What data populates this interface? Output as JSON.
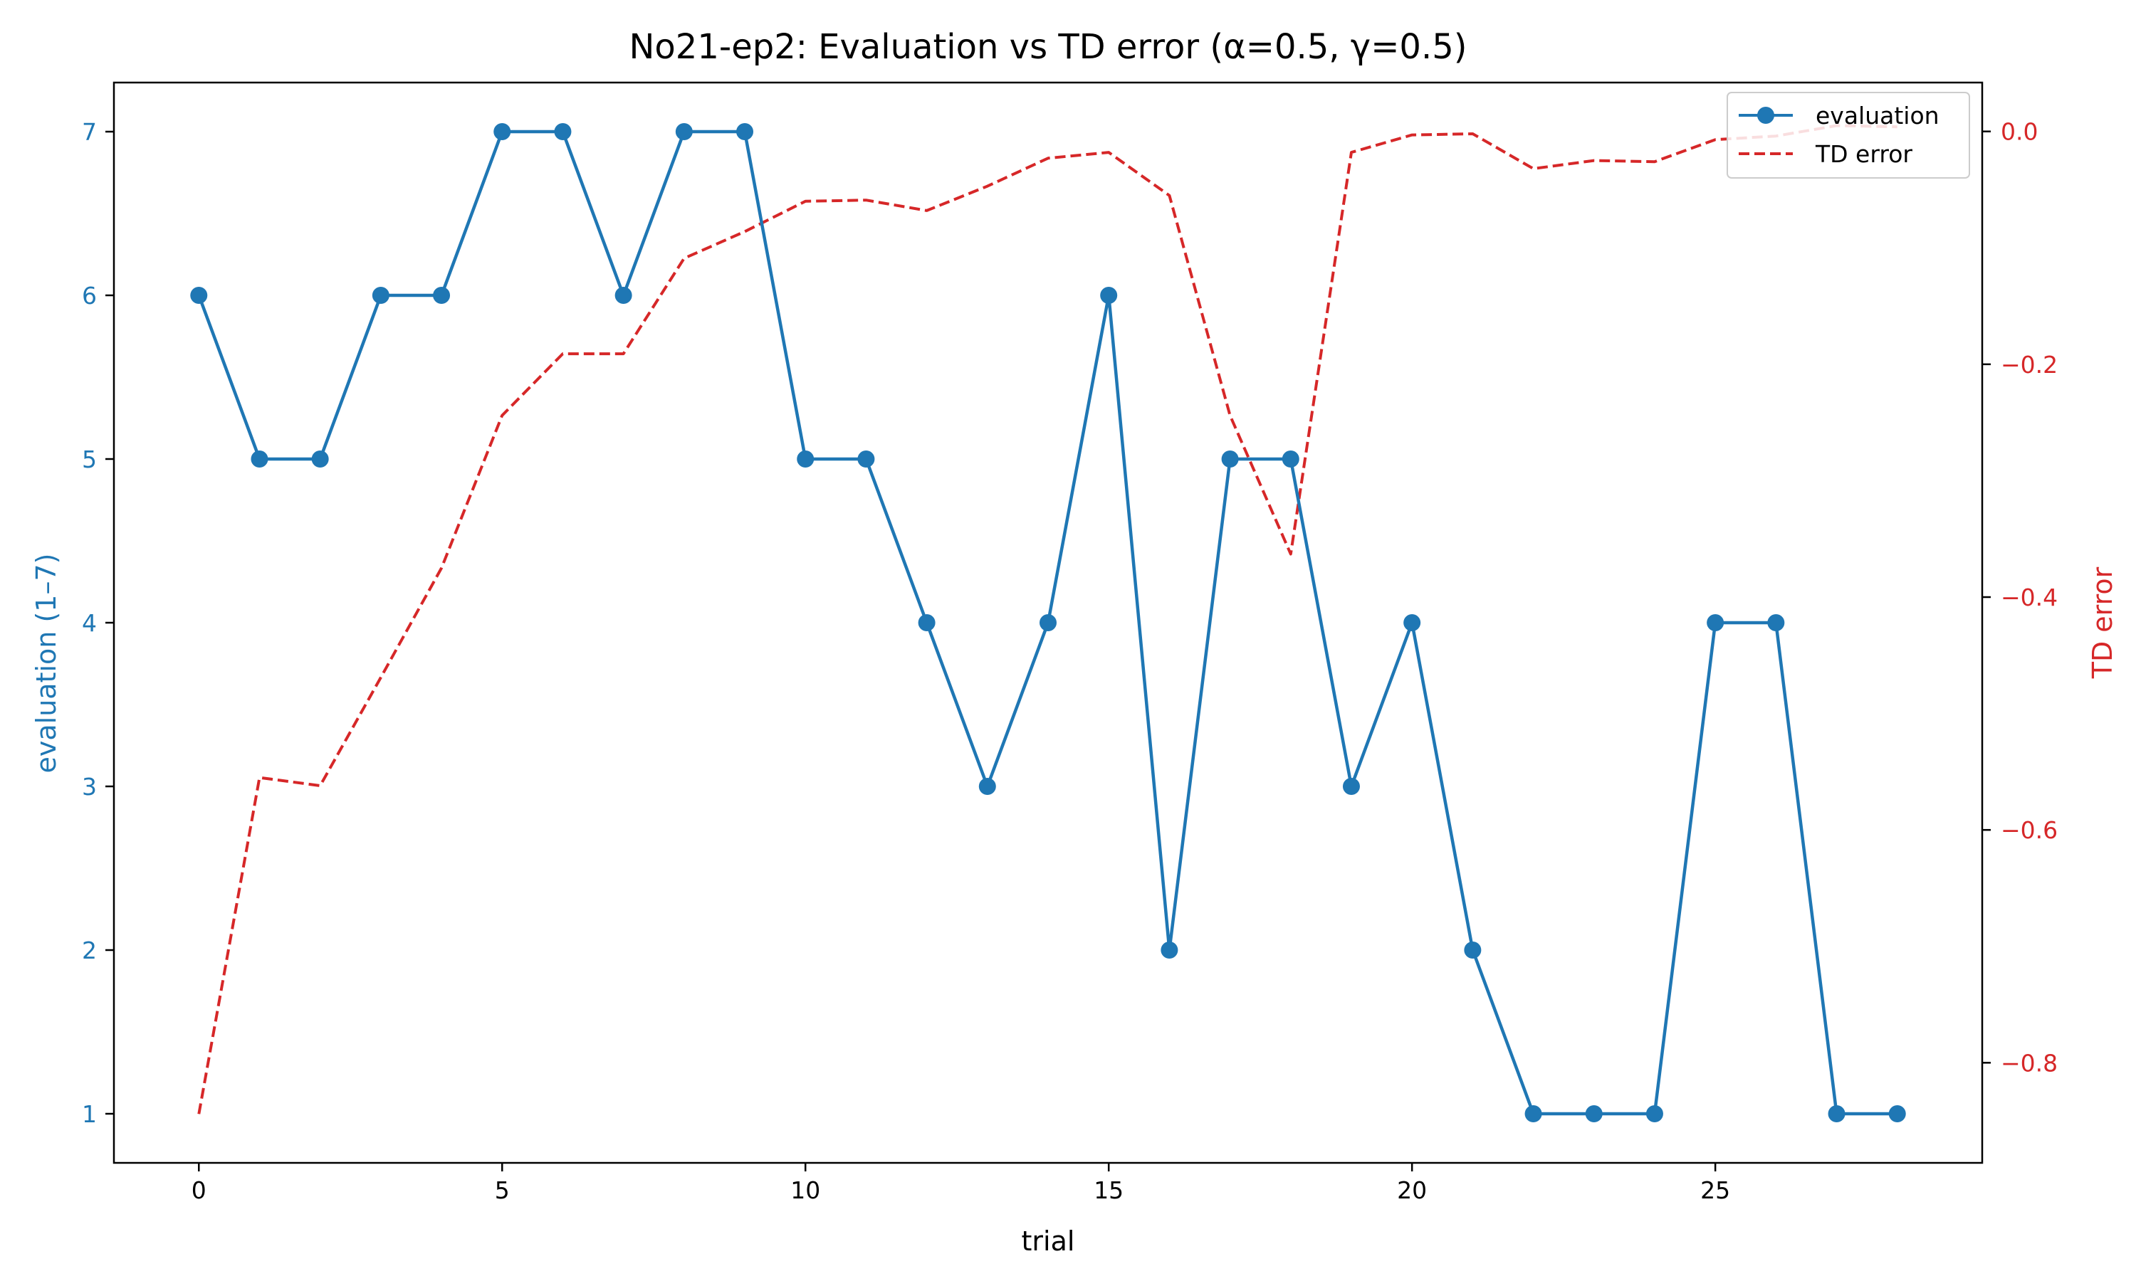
{
  "chart_data": {
    "type": "line",
    "title": "No21-ep2: Evaluation vs TD error (α=0.5, γ=0.5)",
    "xlabel": "trial",
    "ylabel_left": "evaluation (1–7)",
    "ylabel_right": "TD error",
    "xlim": [
      -1.4,
      29.4
    ],
    "xticks": [
      0,
      5,
      10,
      15,
      20,
      25
    ],
    "ylim_left": [
      0.7,
      7.3
    ],
    "yticks_left": [
      1,
      2,
      3,
      4,
      5,
      6,
      7
    ],
    "ylim_right": [
      -0.886,
      0.042
    ],
    "yticks_right": [
      0.0,
      -0.2,
      -0.4,
      -0.6,
      -0.8
    ],
    "yticks_right_labels": [
      "0.0",
      "−0.2",
      "−0.4",
      "−0.6",
      "−0.8"
    ],
    "grid": false,
    "legend_position": "top-right",
    "x": [
      0,
      1,
      2,
      3,
      4,
      5,
      6,
      7,
      8,
      9,
      10,
      11,
      12,
      13,
      14,
      15,
      16,
      17,
      18,
      19,
      20,
      21,
      22,
      23,
      24,
      25,
      26,
      27,
      28
    ],
    "series": [
      {
        "name": "evaluation",
        "axis": "left",
        "style": "solid-marker",
        "color": "#1f77b4",
        "values": [
          6,
          5,
          5,
          6,
          6,
          7,
          7,
          6,
          7,
          7,
          5,
          5,
          4,
          3,
          4,
          6,
          2,
          5,
          5,
          3,
          4,
          2,
          1,
          1,
          1,
          4,
          4,
          1,
          1
        ]
      },
      {
        "name": "TD error",
        "axis": "right",
        "style": "dashed",
        "color": "#d62728",
        "values": [
          -0.844,
          -0.555,
          -0.562,
          -0.469,
          -0.375,
          -0.244,
          -0.191,
          -0.191,
          -0.109,
          -0.086,
          -0.06,
          -0.059,
          -0.068,
          -0.047,
          -0.023,
          -0.018,
          -0.055,
          -0.244,
          -0.363,
          -0.018,
          -0.003,
          -0.002,
          -0.032,
          -0.025,
          -0.026,
          -0.007,
          -0.004,
          0.005,
          0.004
        ]
      }
    ]
  }
}
